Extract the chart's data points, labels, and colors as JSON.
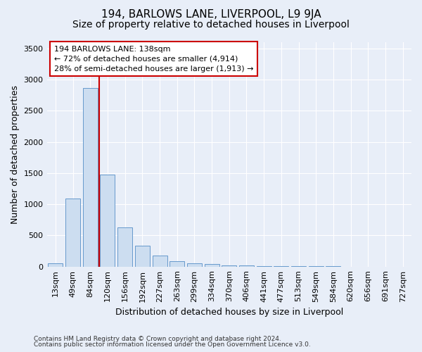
{
  "title": "194, BARLOWS LANE, LIVERPOOL, L9 9JA",
  "subtitle": "Size of property relative to detached houses in Liverpool",
  "xlabel": "Distribution of detached houses by size in Liverpool",
  "ylabel": "Number of detached properties",
  "categories": [
    "13sqm",
    "49sqm",
    "84sqm",
    "120sqm",
    "156sqm",
    "192sqm",
    "227sqm",
    "263sqm",
    "299sqm",
    "334sqm",
    "370sqm",
    "406sqm",
    "441sqm",
    "477sqm",
    "513sqm",
    "549sqm",
    "584sqm",
    "620sqm",
    "656sqm",
    "691sqm",
    "727sqm"
  ],
  "values": [
    50,
    1090,
    2870,
    1480,
    630,
    340,
    175,
    90,
    55,
    45,
    20,
    15,
    10,
    8,
    5,
    4,
    3,
    2,
    1,
    1,
    0
  ],
  "bar_color": "#ccddf0",
  "bar_edge_color": "#6699cc",
  "vline_color": "#cc0000",
  "annotation_line1": "194 BARLOWS LANE: 138sqm",
  "annotation_line2": "← 72% of detached houses are smaller (4,914)",
  "annotation_line3": "28% of semi-detached houses are larger (1,913) →",
  "annotation_box_color": "#cc0000",
  "ylim": [
    0,
    3600
  ],
  "yticks": [
    0,
    500,
    1000,
    1500,
    2000,
    2500,
    3000,
    3500
  ],
  "footnote1": "Contains HM Land Registry data © Crown copyright and database right 2024.",
  "footnote2": "Contains public sector information licensed under the Open Government Licence v3.0.",
  "bg_color": "#e8eef8",
  "plot_bg_color": "#e8eef8",
  "title_fontsize": 11,
  "subtitle_fontsize": 10,
  "xlabel_fontsize": 9,
  "ylabel_fontsize": 9,
  "tick_fontsize": 8,
  "footnote_fontsize": 6.5
}
